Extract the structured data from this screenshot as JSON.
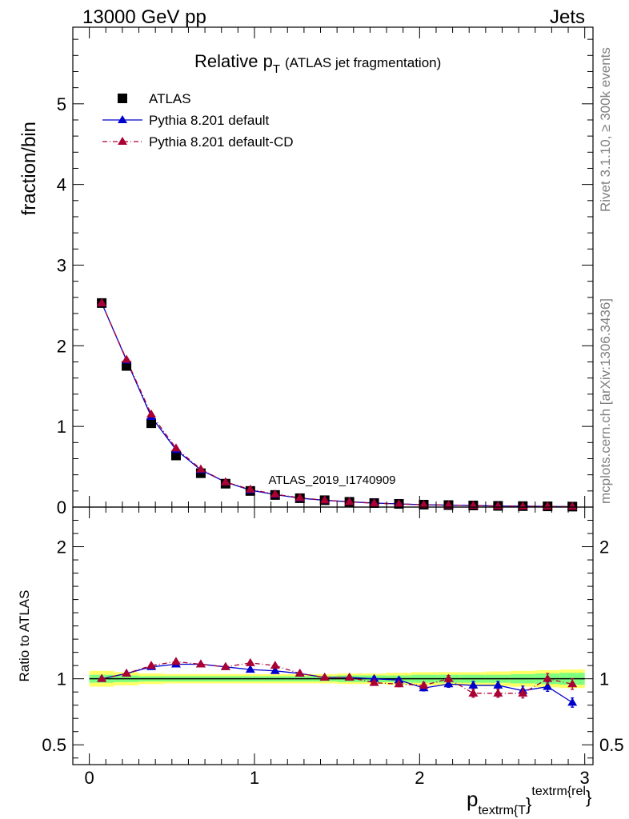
{
  "header": {
    "left": "13000 GeV pp",
    "right": "Jets"
  },
  "side_labels": {
    "rivet": "Rivet 3.1.10, ≥ 300k events",
    "mcplots": "mcplots.cern.ch [arXiv:1306.3436]"
  },
  "chart_data": [
    {
      "type": "line",
      "title_main": "Relative p",
      "title_sub": "T",
      "title_rest": "(ATLAS jet fragmentation)",
      "ylabel": "fraction/bin",
      "watermark": "ATLAS_2019_I1740909",
      "xlim": [
        -0.1,
        3.05
      ],
      "ylim": [
        0,
        5.95
      ],
      "yticks": [
        0,
        1,
        2,
        3,
        4,
        5
      ],
      "ytick_labels": [
        "0",
        "1",
        "2",
        "3",
        "4",
        "5"
      ],
      "x": [
        0.075,
        0.225,
        0.375,
        0.525,
        0.675,
        0.825,
        0.975,
        1.125,
        1.275,
        1.425,
        1.575,
        1.725,
        1.875,
        2.025,
        2.175,
        2.325,
        2.475,
        2.625,
        2.775,
        2.925
      ],
      "series": [
        {
          "name": "ATLAS",
          "marker": "square",
          "color": "#000000",
          "values": [
            2.53,
            1.75,
            1.04,
            0.64,
            0.42,
            0.29,
            0.2,
            0.15,
            0.11,
            0.085,
            0.065,
            0.05,
            0.04,
            0.03,
            0.025,
            0.02,
            0.015,
            0.012,
            0.009,
            0.006
          ]
        },
        {
          "name": "Pythia 8.201 default",
          "marker": "triangle",
          "color": "#0000cc",
          "line": "solid",
          "values": [
            2.53,
            1.82,
            1.12,
            0.71,
            0.46,
            0.31,
            0.21,
            0.155,
            0.11,
            0.085,
            0.065,
            0.05,
            0.04,
            0.028,
            0.024,
            0.019,
            0.014,
            0.011,
            0.0085,
            0.005
          ]
        },
        {
          "name": "Pythia 8.201 default-CD",
          "marker": "triangle",
          "color": "#aa0033",
          "line": "dashdot",
          "values": [
            2.53,
            1.83,
            1.15,
            0.73,
            0.47,
            0.31,
            0.22,
            0.16,
            0.115,
            0.086,
            0.065,
            0.048,
            0.038,
            0.029,
            0.025,
            0.018,
            0.013,
            0.0105,
            0.009,
            0.0058
          ]
        }
      ]
    },
    {
      "type": "line",
      "ylabel": "Ratio to ATLAS",
      "xlabel_main": "p",
      "xlabel_sub": "textrm{T",
      "xlabel_sup": "textrm{rel",
      "xlabel_braces": "}",
      "xlim": [
        -0.1,
        3.05
      ],
      "ylim": [
        0.35,
        2.3
      ],
      "xticks": [
        0,
        1,
        2,
        3
      ],
      "xtick_labels": [
        "0",
        "1",
        "2",
        "3"
      ],
      "yticks": [
        0.5,
        1,
        2
      ],
      "ytick_labels": [
        "0.5",
        "1",
        "2"
      ],
      "x": [
        0.075,
        0.225,
        0.375,
        0.525,
        0.675,
        0.825,
        0.975,
        1.125,
        1.275,
        1.425,
        1.575,
        1.725,
        1.875,
        2.025,
        2.175,
        2.325,
        2.475,
        2.625,
        2.775,
        2.925
      ],
      "band_inner": [
        0.03,
        0.025,
        0.02,
        0.02,
        0.02,
        0.02,
        0.02,
        0.02,
        0.02,
        0.02,
        0.025,
        0.025,
        0.025,
        0.03,
        0.03,
        0.03,
        0.03,
        0.035,
        0.04,
        0.045
      ],
      "band_outer": [
        0.06,
        0.05,
        0.04,
        0.035,
        0.035,
        0.035,
        0.035,
        0.035,
        0.035,
        0.035,
        0.04,
        0.04,
        0.045,
        0.05,
        0.05,
        0.05,
        0.055,
        0.06,
        0.065,
        0.07
      ],
      "band_colors": {
        "inner": "#7fff7f",
        "outer": "#ffff66"
      },
      "series": [
        {
          "name": "Pythia 8.201 default",
          "color": "#0000cc",
          "line": "solid",
          "values": [
            1.0,
            1.04,
            1.09,
            1.11,
            1.11,
            1.09,
            1.07,
            1.06,
            1.04,
            1.01,
            1.01,
            1.0,
            0.99,
            0.93,
            0.96,
            0.95,
            0.95,
            0.91,
            0.94,
            0.82
          ],
          "errors": [
            0.005,
            0.006,
            0.008,
            0.008,
            0.009,
            0.01,
            0.01,
            0.01,
            0.012,
            0.012,
            0.015,
            0.018,
            0.02,
            0.022,
            0.025,
            0.03,
            0.03,
            0.035,
            0.035,
            0.035
          ]
        },
        {
          "name": "Pythia 8.201 default-CD",
          "color": "#aa0033",
          "line": "dashdot",
          "values": [
            1.0,
            1.04,
            1.1,
            1.13,
            1.11,
            1.09,
            1.12,
            1.1,
            1.04,
            1.01,
            1.01,
            0.97,
            0.96,
            0.95,
            1.0,
            0.89,
            0.89,
            0.89,
            1.0,
            0.96
          ],
          "errors": [
            0.005,
            0.006,
            0.008,
            0.008,
            0.009,
            0.01,
            0.01,
            0.01,
            0.012,
            0.012,
            0.015,
            0.018,
            0.02,
            0.022,
            0.025,
            0.03,
            0.03,
            0.035,
            0.04,
            0.04
          ]
        }
      ]
    }
  ]
}
